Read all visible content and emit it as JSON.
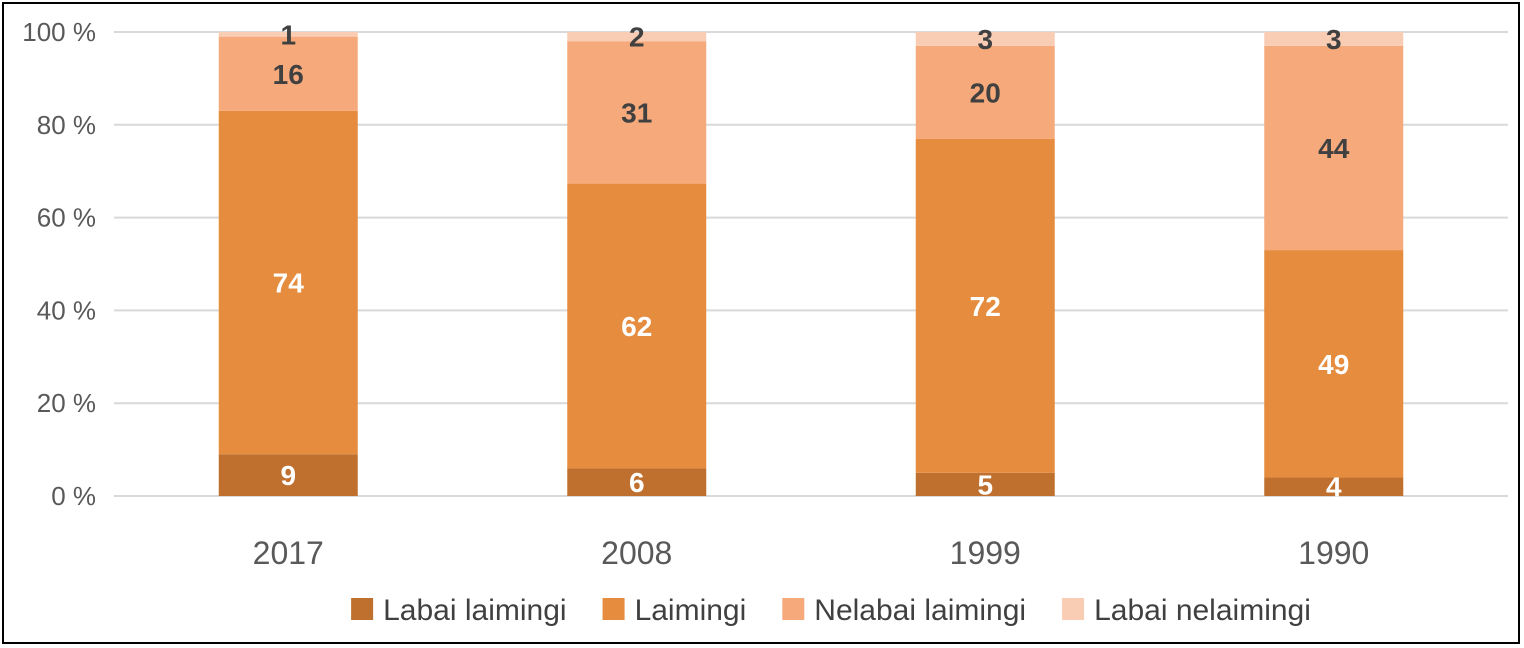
{
  "chart_data": {
    "type": "bar",
    "stacked": true,
    "percent_stacked": true,
    "categories": [
      "2017",
      "2008",
      "1999",
      "1990"
    ],
    "series": [
      {
        "name": "Labai laimingi",
        "values": [
          9,
          6,
          5,
          4
        ],
        "color": "#C0702E",
        "label_color": "#FFFFFF"
      },
      {
        "name": "Laimingi",
        "values": [
          74,
          62,
          72,
          49
        ],
        "color": "#E68C3F",
        "label_color": "#FFFFFF"
      },
      {
        "name": "Nelabai laimingi",
        "values": [
          16,
          31,
          20,
          44
        ],
        "color": "#F6AA7B",
        "label_color": "#404040"
      },
      {
        "name": "Labai nelaimingi",
        "values": [
          1,
          2,
          3,
          3
        ],
        "color": "#F9CDB3",
        "label_color": "#404040"
      }
    ],
    "y_ticks": [
      "0 %",
      "20 %",
      "40 %",
      "60 %",
      "80 %",
      "100 %"
    ],
    "y_tick_values": [
      0,
      20,
      40,
      60,
      80,
      100
    ],
    "ylim": [
      0,
      100
    ],
    "grid": true,
    "legend": "bottom",
    "gridline_color": "#D9D9D9",
    "title": "",
    "xlabel": "",
    "ylabel": ""
  }
}
